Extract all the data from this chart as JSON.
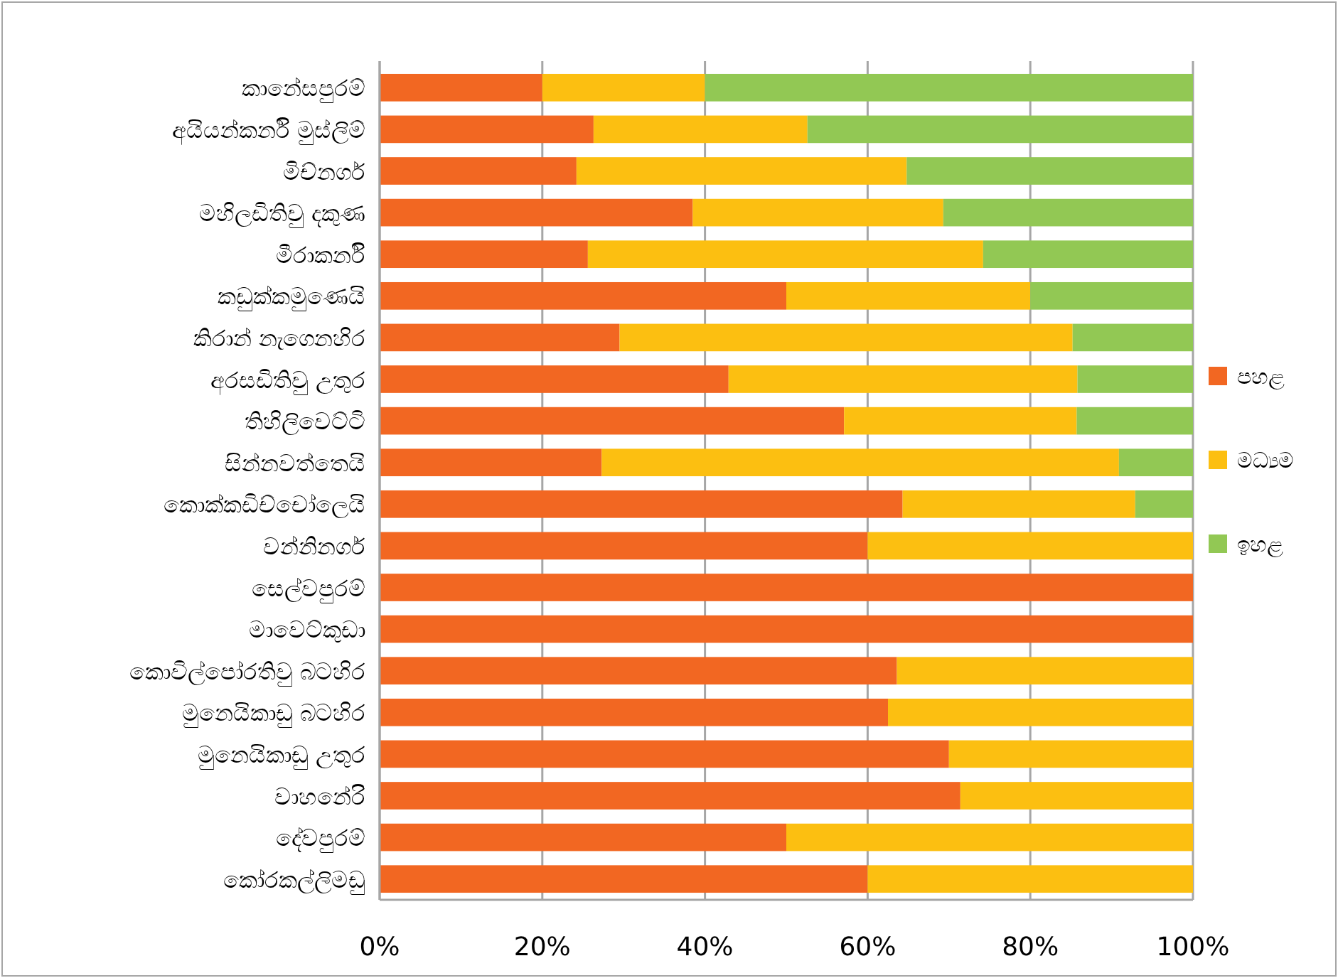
{
  "chart_data": {
    "type": "bar",
    "orientation": "horizontal",
    "stacked": true,
    "categories": [
      "කානේසපුරම්",
      "අයියන්කර්නි මුස්ලිම්",
      "මිච්නගර්",
      "මහිලඩිතිවු දකුණ",
      "මීරාකර්නි",
      "කඩුක්කමුණෙයි",
      "කිරාන් නැගෙනහිර",
      "අරසඩිතිවු උතුර",
      "තිහිලිවෙට්ටි",
      "සින්නවත්තෙයි",
      "කොක්කඩිච්චෝලෙයි",
      "වන්නිනගර්",
      "සෙල්වපුරම්",
      "මාවෙට්කුඩා",
      "කොවිල්පෝරතිවු බටහිර",
      "මුනෙයිකාඩු බටහිර",
      "මුනෙයිකාඩු උතුර",
      "වාහනේරි",
      "දේවපුරම්",
      "කෝරකල්ලිමඩු"
    ],
    "series": [
      {
        "name": "පහළ",
        "color": "#f26722",
        "values": [
          20,
          26.3,
          24.2,
          38.5,
          25.6,
          50,
          29.5,
          42.9,
          57.1,
          27.3,
          64.3,
          60,
          100,
          100,
          63.6,
          62.5,
          70,
          71.4,
          50,
          60
        ]
      },
      {
        "name": "මධ්‍යම",
        "color": "#fcbf11",
        "values": [
          20,
          26.3,
          40.6,
          30.8,
          48.6,
          30,
          55.7,
          42.9,
          28.6,
          63.6,
          28.6,
          40,
          null,
          null,
          36.4,
          37.5,
          30,
          28.6,
          50,
          40
        ]
      },
      {
        "name": "ඉහළ",
        "color": "#92c854",
        "values": [
          60,
          47.4,
          35.2,
          30.7,
          25.8,
          20,
          14.8,
          14.2,
          14.3,
          9.1,
          7.1,
          null,
          null,
          null,
          null,
          null,
          null,
          null,
          null,
          null
        ]
      }
    ],
    "xlim": [
      0,
      100
    ],
    "xticks": [
      {
        "value": 0,
        "label": "0%"
      },
      {
        "value": 20,
        "label": "20%"
      },
      {
        "value": 40,
        "label": "40%"
      },
      {
        "value": 60,
        "label": "60%"
      },
      {
        "value": 80,
        "label": "80%"
      },
      {
        "value": 100,
        "label": "100%"
      }
    ],
    "grid": "x",
    "legend": "right"
  }
}
